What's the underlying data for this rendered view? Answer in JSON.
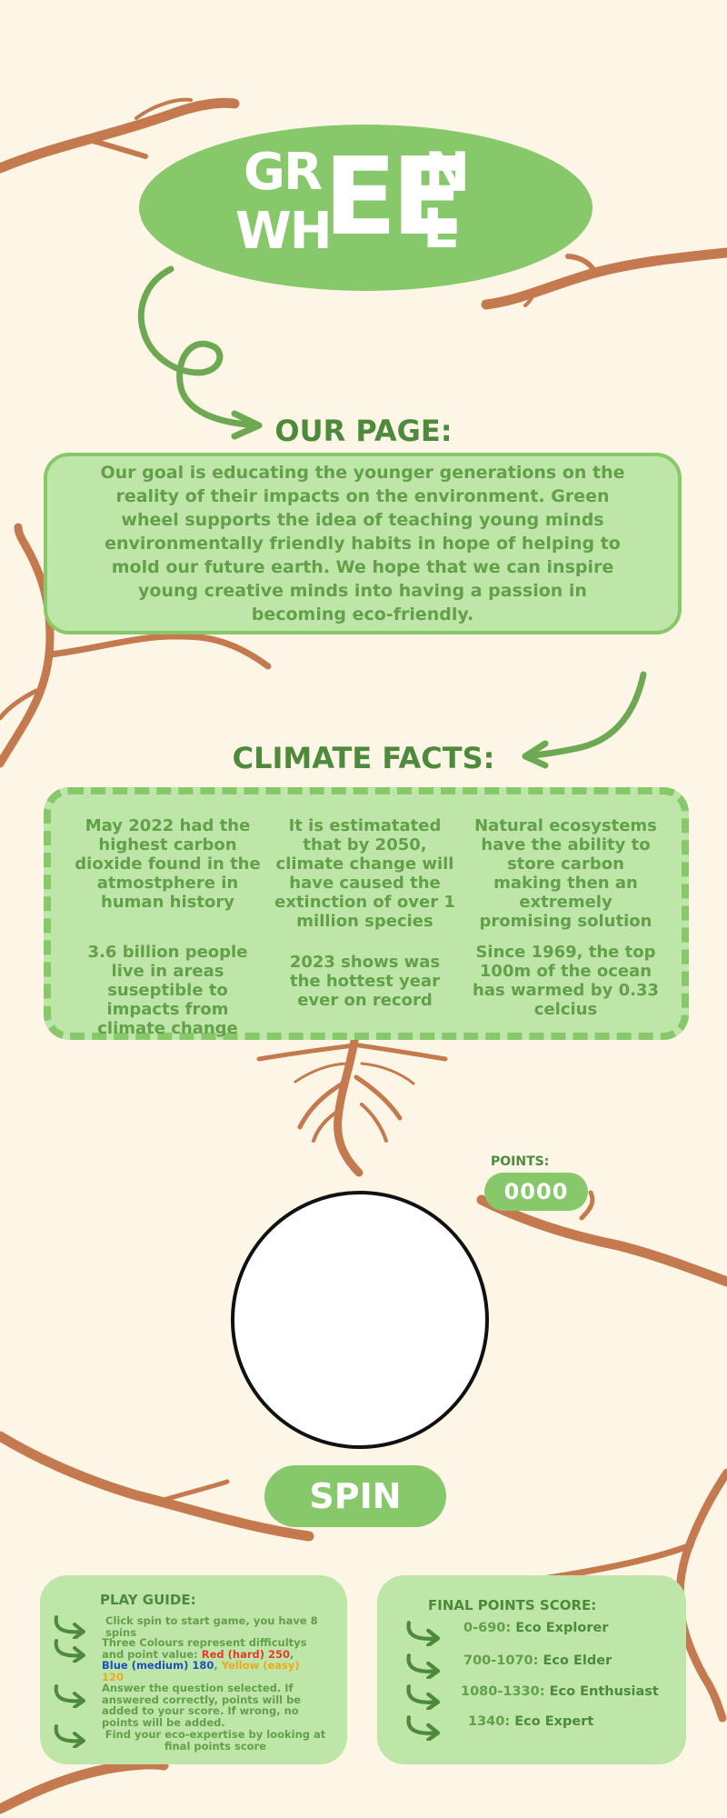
{
  "logo": {
    "line1_left": "GR",
    "line1_right": "N",
    "line2_left": "WH",
    "line2_right": "L",
    "center": "EE"
  },
  "about": {
    "heading": "OUR PAGE:",
    "text": "Our goal is educating the younger generations on the reality of their impacts on the environment. Green wheel supports the idea of teaching young minds environmentally friendly habits in hope of helping to mold our future earth. We hope that we can inspire young creative minds into having a passion in becoming eco-friendly."
  },
  "facts": {
    "heading": "CLIMATE FACTS:",
    "items": [
      "May 2022 had the highest carbon dioxide found in the atmostphere in human history",
      "It is estimatated that by 2050, climate change will have caused the extinction of over 1 million species",
      "Natural ecosystems have the ability to store carbon making then an extremely promising solution",
      "3.6 billion people live in areas suseptible to impacts from climate change",
      "2023 shows was the hottest year ever on record",
      "Since 1969, the top 100m of the ocean has warmed by 0.33 celcius"
    ]
  },
  "game": {
    "points_label": "POINTS:",
    "points_value": "0000",
    "spin_label": "SPIN"
  },
  "guide": {
    "title": "PLAY GUIDE:",
    "item1": "Click spin to start game, you have 8 spins",
    "item2_prefix": "Three Colours represent difficultys and point value:",
    "item2_red": "Red (hard) 250",
    "item2_sep1": ",",
    "item2_blue": "Blue (medium) 180",
    "item2_sep2": ",",
    "item2_yellow": "Yellow (easy) 120",
    "item3": "Answer the question selected. If answered correctly, points will be added to your score. If wrong, no points will be added.",
    "item4": "Find your eco-expertise by looking at final points score"
  },
  "scores": {
    "title": "FINAL POINTS SCORE:",
    "items": [
      {
        "range": "0-690:",
        "name": "Eco Explorer"
      },
      {
        "range": "700-1070:",
        "name": "Eco Elder"
      },
      {
        "range": "1080-1330:",
        "name": "Eco Enthusiast"
      },
      {
        "range": "1340:",
        "name": "Eco Expert"
      }
    ]
  },
  "colors": {
    "background": "#fdf6e6",
    "green_dark": "#4e8a3b",
    "green_mid": "#86c86a",
    "green_light": "#bde6a8",
    "branch": "#c47a4e",
    "red": "#e33b2e",
    "blue": "#1f4fb8",
    "yellow": "#f0a81c"
  }
}
